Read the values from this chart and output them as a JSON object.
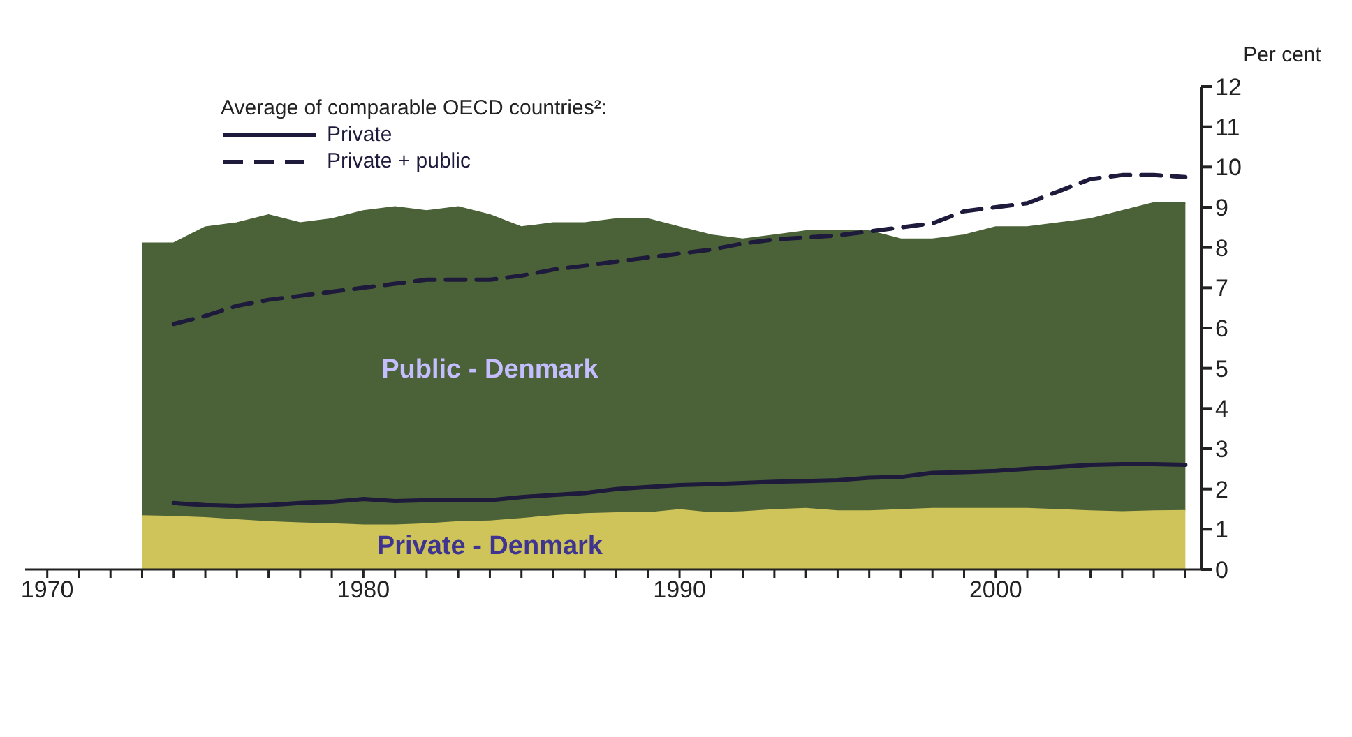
{
  "chart_data": {
    "type": "area",
    "stacked": true,
    "x": [
      1973,
      1974,
      1975,
      1976,
      1977,
      1978,
      1979,
      1980,
      1981,
      1982,
      1983,
      1984,
      1985,
      1986,
      1987,
      1988,
      1989,
      1990,
      1991,
      1992,
      1993,
      1994,
      1995,
      1996,
      1997,
      1998,
      1999,
      2000,
      2001,
      2002,
      2003,
      2004,
      2005,
      2006
    ],
    "series": [
      {
        "name": "Private - Denmark",
        "color": "#cfc45a",
        "values": [
          1.35,
          1.33,
          1.3,
          1.25,
          1.2,
          1.17,
          1.15,
          1.12,
          1.12,
          1.15,
          1.2,
          1.22,
          1.28,
          1.35,
          1.4,
          1.42,
          1.42,
          1.5,
          1.42,
          1.45,
          1.5,
          1.53,
          1.47,
          1.47,
          1.5,
          1.53,
          1.53,
          1.53,
          1.53,
          1.5,
          1.47,
          1.45,
          1.47,
          1.48
        ]
      },
      {
        "name": "Public - Denmark",
        "color": "#4b6137",
        "values": [
          6.75,
          6.77,
          7.2,
          7.35,
          7.6,
          7.43,
          7.55,
          7.78,
          7.88,
          7.75,
          7.8,
          7.58,
          7.22,
          7.25,
          7.2,
          7.28,
          7.28,
          7.0,
          6.88,
          6.75,
          6.8,
          6.87,
          6.93,
          6.93,
          6.7,
          6.67,
          6.77,
          6.97,
          6.97,
          7.1,
          7.23,
          7.45,
          7.63,
          7.62
        ]
      },
      {
        "name": "Private",
        "type": "line",
        "line_style": "solid",
        "color": "#1e1a3c",
        "values": [
          null,
          1.65,
          1.6,
          1.58,
          1.6,
          1.65,
          1.68,
          1.75,
          1.7,
          1.72,
          1.73,
          1.72,
          1.8,
          1.85,
          1.9,
          2.0,
          2.05,
          2.1,
          2.12,
          2.15,
          2.18,
          2.2,
          2.22,
          2.28,
          2.3,
          2.4,
          2.42,
          2.45,
          2.5,
          2.55,
          2.6,
          2.62,
          2.62,
          2.6
        ]
      },
      {
        "name": "Private + public",
        "type": "line",
        "line_style": "dashed",
        "color": "#1e1a3c",
        "values": [
          null,
          6.1,
          6.3,
          6.55,
          6.7,
          6.8,
          6.9,
          7.0,
          7.1,
          7.2,
          7.2,
          7.2,
          7.3,
          7.45,
          7.55,
          7.65,
          7.75,
          7.85,
          7.95,
          8.1,
          8.2,
          8.25,
          8.3,
          8.4,
          8.5,
          8.6,
          8.9,
          9.0,
          9.1,
          9.4,
          9.7,
          9.8,
          9.8,
          9.75
        ]
      }
    ],
    "legend_title": "Average of comparable OECD countries²:",
    "legend": "top left",
    "ylabel": "Per cent",
    "xlim": [
      1969.3,
      2006.5
    ],
    "xticks": [
      1970,
      {
        "value": 1971,
        "label": null
      },
      {
        "value": 1972,
        "label": null
      },
      {
        "value": 1973,
        "label": null
      },
      {
        "value": 1974,
        "label": null
      },
      {
        "value": 1975,
        "label": null
      },
      {
        "value": 1976,
        "label": null
      },
      {
        "value": 1977,
        "label": null
      },
      {
        "value": 1978,
        "label": null
      },
      {
        "value": 1979,
        "label": null
      },
      1980,
      {
        "value": 1981,
        "label": null
      },
      {
        "value": 1982,
        "label": null
      },
      {
        "value": 1983,
        "label": null
      },
      {
        "value": 1984,
        "label": null
      },
      {
        "value": 1985,
        "label": null
      },
      {
        "value": 1986,
        "label": null
      },
      {
        "value": 1987,
        "label": null
      },
      {
        "value": 1988,
        "label": null
      },
      {
        "value": 1989,
        "label": null
      },
      1990,
      {
        "value": 1991,
        "label": null
      },
      {
        "value": 1992,
        "label": null
      },
      {
        "value": 1993,
        "label": null
      },
      {
        "value": 1994,
        "label": null
      },
      {
        "value": 1995,
        "label": null
      },
      {
        "value": 1996,
        "label": null
      },
      {
        "value": 1997,
        "label": null
      },
      {
        "value": 1998,
        "label": null
      },
      {
        "value": 1999,
        "label": null
      },
      2000,
      {
        "value": 2001,
        "label": null
      },
      {
        "value": 2002,
        "label": null
      },
      {
        "value": 2003,
        "label": null
      },
      {
        "value": 2004,
        "label": null
      },
      {
        "value": 2005,
        "label": null
      },
      {
        "value": 2006,
        "label": null
      }
    ],
    "ylim": [
      0,
      12
    ],
    "yticks": [
      0,
      1,
      2,
      3,
      4,
      5,
      6,
      7,
      8,
      9,
      10,
      11,
      12
    ],
    "grid": false
  }
}
